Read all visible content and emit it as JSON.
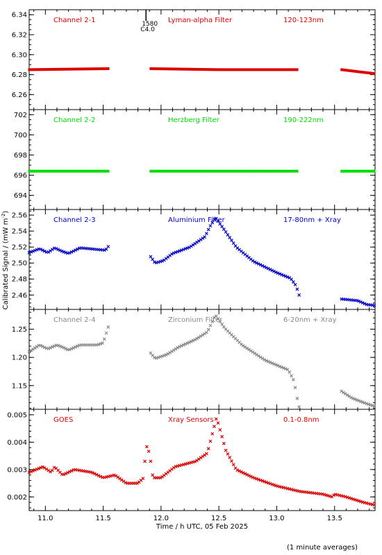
{
  "x_axis": {
    "label": "Time / h UTC, 05 Feb 2025",
    "range": [
      10.86,
      13.85
    ],
    "ticks": [
      "11.0",
      "11.5",
      "12.0",
      "12.5",
      "13.0",
      "13.5"
    ],
    "tick_values": [
      11.0,
      11.5,
      12.0,
      12.5,
      13.0,
      13.5
    ],
    "minor_step": 0.1
  },
  "y_axis_label": "Calibrated Signal / (mW m",
  "y_axis_label_sup": "-2",
  "y_axis_label_end": ")",
  "footnote": "(1 minute averages)",
  "top_marker": {
    "x": 11.87,
    "text_line1": "1580",
    "text_line2": "C4.0"
  },
  "chart_data": [
    {
      "type": "scatter",
      "channel": "Channel 2-1",
      "filter": "Lyman-alpha Filter",
      "band": "120-123nm",
      "color": "#dd0000",
      "marker": "line",
      "ylim": [
        6.245,
        6.345
      ],
      "yticks": [
        6.26,
        6.28,
        6.3,
        6.32,
        6.34
      ],
      "ytick_labels": [
        "6.26",
        "6.28",
        "6.30",
        "6.32",
        "6.34"
      ],
      "minor_step": 0.005,
      "gaps": [
        [
          11.56,
          11.9
        ],
        [
          13.19,
          13.55
        ]
      ],
      "profile": [
        [
          10.86,
          6.285
        ],
        [
          11.55,
          6.286
        ],
        [
          11.9,
          6.286
        ],
        [
          12.5,
          6.285
        ],
        [
          13.18,
          6.285
        ],
        [
          13.56,
          6.285
        ],
        [
          13.7,
          6.283
        ],
        [
          13.85,
          6.281
        ]
      ]
    },
    {
      "type": "scatter",
      "channel": "Channel 2-2",
      "filter": "Herzberg Filter",
      "band": "190-222nm",
      "color": "#00dd00",
      "marker": "line",
      "ylim": [
        692.6,
        702.5
      ],
      "yticks": [
        694,
        696,
        698,
        700,
        702
      ],
      "ytick_labels": [
        "694",
        "696",
        "698",
        "700",
        "702"
      ],
      "minor_step": 0.5,
      "gaps": [
        [
          11.56,
          11.9
        ],
        [
          13.19,
          13.55
        ]
      ],
      "profile": [
        [
          10.86,
          696.4
        ],
        [
          13.85,
          696.4
        ]
      ]
    },
    {
      "type": "scatter",
      "channel": "Channel 2-3",
      "filter": "Aluminium Filter",
      "band": "17-80nm + Xray",
      "color": "#0000cc",
      "marker": "x",
      "ylim": [
        2.442,
        2.567
      ],
      "yticks": [
        2.46,
        2.48,
        2.5,
        2.52,
        2.54,
        2.56
      ],
      "ytick_labels": [
        "2.46",
        "2.48",
        "2.50",
        "2.52",
        "2.54",
        "2.56"
      ],
      "minor_step": 0.005,
      "gaps": [
        [
          11.56,
          11.9
        ],
        [
          13.2,
          13.55
        ]
      ],
      "profile": [
        [
          10.86,
          2.513
        ],
        [
          10.95,
          2.518
        ],
        [
          11.02,
          2.513
        ],
        [
          11.08,
          2.519
        ],
        [
          11.14,
          2.515
        ],
        [
          11.2,
          2.512
        ],
        [
          11.3,
          2.519
        ],
        [
          11.45,
          2.517
        ],
        [
          11.52,
          2.516
        ],
        [
          11.55,
          2.522
        ],
        [
          11.9,
          2.51
        ],
        [
          11.95,
          2.5
        ],
        [
          12.02,
          2.503
        ],
        [
          12.1,
          2.512
        ],
        [
          12.25,
          2.52
        ],
        [
          12.38,
          2.533
        ],
        [
          12.42,
          2.545
        ],
        [
          12.47,
          2.557
        ],
        [
          12.55,
          2.541
        ],
        [
          12.65,
          2.52
        ],
        [
          12.8,
          2.502
        ],
        [
          13.0,
          2.488
        ],
        [
          13.12,
          2.481
        ],
        [
          13.17,
          2.471
        ],
        [
          13.19,
          2.46
        ],
        [
          13.56,
          2.455
        ],
        [
          13.7,
          2.453
        ],
        [
          13.78,
          2.448
        ],
        [
          13.85,
          2.447
        ]
      ]
    },
    {
      "type": "scatter",
      "channel": "Channel 2-4",
      "filter": "Zirconium Filter",
      "band": "6-20nm + Xray",
      "color": "#888888",
      "marker": "x",
      "ylim": [
        1.108,
        1.285
      ],
      "yticks": [
        1.15,
        1.2,
        1.25
      ],
      "ytick_labels": [
        "1.15",
        "1.20",
        "1.25"
      ],
      "minor_step": 0.01,
      "gaps": [
        [
          11.56,
          11.9
        ],
        [
          13.2,
          13.55
        ]
      ],
      "profile": [
        [
          10.86,
          1.21
        ],
        [
          10.95,
          1.222
        ],
        [
          11.02,
          1.215
        ],
        [
          11.1,
          1.222
        ],
        [
          11.15,
          1.218
        ],
        [
          11.2,
          1.213
        ],
        [
          11.3,
          1.222
        ],
        [
          11.45,
          1.222
        ],
        [
          11.5,
          1.226
        ],
        [
          11.55,
          1.258
        ],
        [
          11.9,
          1.21
        ],
        [
          11.95,
          1.198
        ],
        [
          12.05,
          1.205
        ],
        [
          12.15,
          1.218
        ],
        [
          12.3,
          1.232
        ],
        [
          12.4,
          1.245
        ],
        [
          12.47,
          1.275
        ],
        [
          12.55,
          1.252
        ],
        [
          12.7,
          1.222
        ],
        [
          12.9,
          1.195
        ],
        [
          13.05,
          1.182
        ],
        [
          13.1,
          1.178
        ],
        [
          13.15,
          1.158
        ],
        [
          13.19,
          1.112
        ],
        [
          13.56,
          1.14
        ],
        [
          13.65,
          1.128
        ],
        [
          13.75,
          1.12
        ],
        [
          13.85,
          1.113
        ]
      ]
    },
    {
      "type": "scatter",
      "channel": "GOES",
      "filter": "Xray Sensors",
      "band": "0.1-0.8nm",
      "color": "#dd0000",
      "marker": "x",
      "ylim": [
        0.0015,
        0.0052
      ],
      "yticks": [
        0.002,
        0.003,
        0.004,
        0.005
      ],
      "ytick_labels": [
        "0.002",
        "0.003",
        "0.004",
        "0.005"
      ],
      "minor_step": 0.0002,
      "gaps": [],
      "profile": [
        [
          10.86,
          0.0029
        ],
        [
          10.98,
          0.0031
        ],
        [
          11.05,
          0.0029
        ],
        [
          11.08,
          0.0031
        ],
        [
          11.15,
          0.0028
        ],
        [
          11.25,
          0.003
        ],
        [
          11.4,
          0.0029
        ],
        [
          11.5,
          0.0027
        ],
        [
          11.6,
          0.0028
        ],
        [
          11.7,
          0.0025
        ],
        [
          11.8,
          0.0025
        ],
        [
          11.85,
          0.0027
        ],
        [
          11.87,
          0.0039
        ],
        [
          11.9,
          0.0036
        ],
        [
          11.93,
          0.0027
        ],
        [
          12.0,
          0.0027
        ],
        [
          12.12,
          0.0031
        ],
        [
          12.3,
          0.0033
        ],
        [
          12.4,
          0.0036
        ],
        [
          12.48,
          0.0049
        ],
        [
          12.56,
          0.0037
        ],
        [
          12.65,
          0.003
        ],
        [
          12.8,
          0.0027
        ],
        [
          13.0,
          0.0024
        ],
        [
          13.2,
          0.0022
        ],
        [
          13.4,
          0.0021
        ],
        [
          13.48,
          0.002
        ],
        [
          13.5,
          0.0021
        ],
        [
          13.6,
          0.002
        ],
        [
          13.75,
          0.0018
        ],
        [
          13.85,
          0.0017
        ]
      ]
    }
  ]
}
